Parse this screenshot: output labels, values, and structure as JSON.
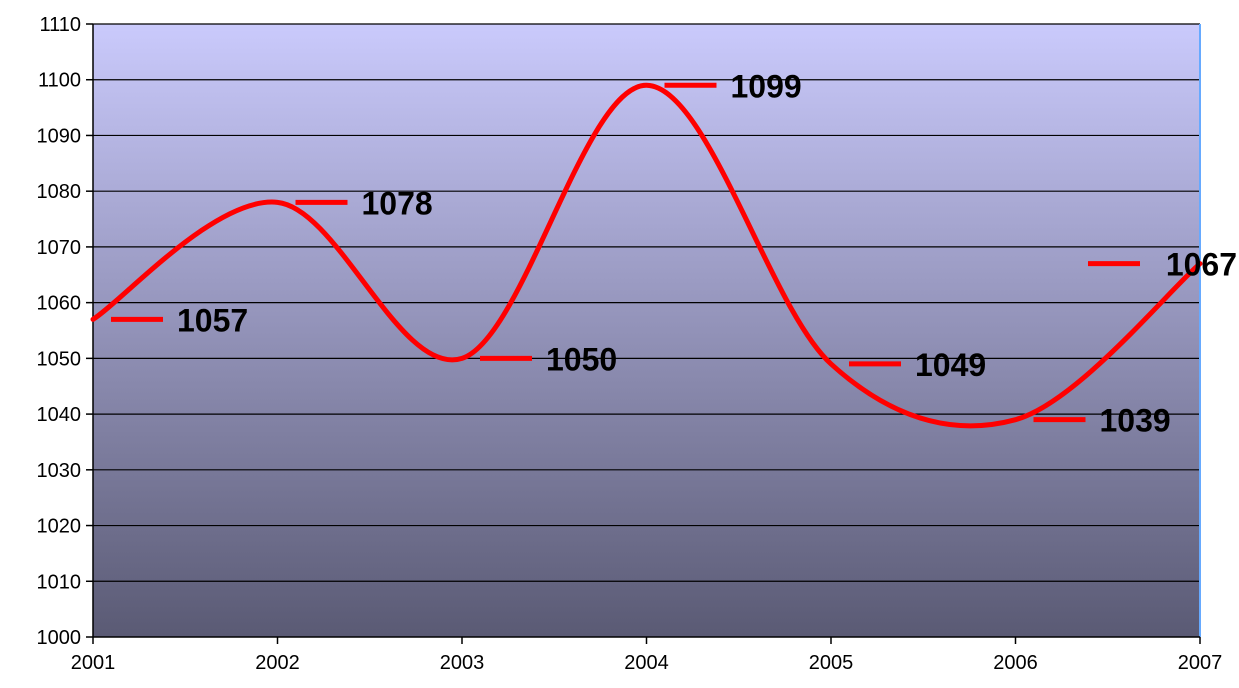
{
  "chart_data": {
    "type": "line",
    "title": "",
    "xlabel": "",
    "ylabel": "",
    "categories": [
      "2001",
      "2002",
      "2003",
      "2004",
      "2005",
      "2006",
      "2007"
    ],
    "series": [
      {
        "values": [
          1057,
          1078,
          1050,
          1099,
          1049,
          1039,
          1067
        ]
      }
    ],
    "data_labels": [
      "1057",
      "1078",
      "1050",
      "1099",
      "1049",
      "1039",
      "1067"
    ],
    "ylim": [
      1000,
      1110
    ],
    "y_ticks": [
      1000,
      1010,
      1020,
      1030,
      1040,
      1050,
      1060,
      1070,
      1080,
      1090,
      1100,
      1110
    ],
    "grid": true,
    "legend": "none",
    "line_style": "smooth",
    "colors": {
      "line": "#ff0000",
      "marker": "#ff0000",
      "plot_bg_top": "#cacafc",
      "plot_bg_bottom": "#5a5a74",
      "grid": "#000000",
      "frame_right": "#66aaff"
    }
  }
}
